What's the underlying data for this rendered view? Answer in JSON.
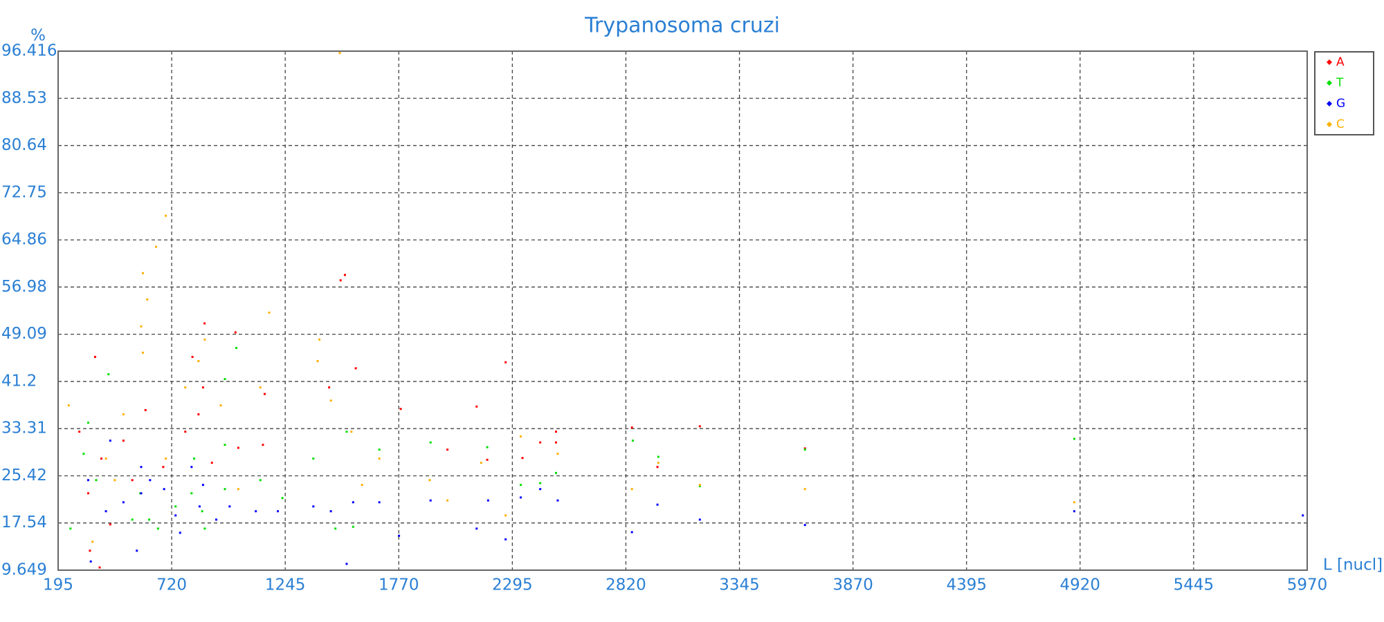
{
  "chart_data": {
    "type": "scatter",
    "title": "Trypanosoma cruzi",
    "y_label": "%",
    "x_label": "L [nucl]",
    "xlim": [
      195,
      5970
    ],
    "xticks": [
      195,
      720,
      1245,
      1770,
      2295,
      2820,
      3345,
      3870,
      4395,
      4920,
      5445,
      5970
    ],
    "ylim": [
      9.649,
      96.416
    ],
    "yticks": [
      9.649,
      17.54,
      25.42,
      33.31,
      41.2,
      49.09,
      56.98,
      64.86,
      72.75,
      80.64,
      88.53,
      96.416
    ],
    "grid": true,
    "series": [
      {
        "name": "A",
        "color": "#ff0000",
        "x": [
          366,
          872,
          1015,
          1501,
          1521,
          1571,
          1448,
          2130,
          2264,
          2848,
          3162,
          3648,
          2497,
          2424,
          2342,
          2179,
          1995,
          1779,
          1142,
          1028,
          844,
          865,
          816,
          599,
          497,
          395,
          334,
          293,
          387,
          2966,
          1150,
          783,
          681,
          906,
          538,
          436,
          342,
          2497
        ],
        "values": [
          45.3,
          50.9,
          49.4,
          58.1,
          59.0,
          43.4,
          40.2,
          37.0,
          44.4,
          33.5,
          33.7,
          30.0,
          31.0,
          31.0,
          28.4,
          28.1,
          29.8,
          36.6,
          30.6,
          30.1,
          35.7,
          40.2,
          45.3,
          36.4,
          31.3,
          28.3,
          22.5,
          32.8,
          10.1,
          26.9,
          39.1,
          32.8,
          26.9,
          27.6,
          24.7,
          17.3,
          12.9,
          32.8
        ]
      },
      {
        "name": "T",
        "color": "#00e000",
        "x": [
          428,
          1019,
          966,
          1529,
          1680,
          1917,
          2179,
          2334,
          2424,
          2497,
          2852,
          2970,
          3162,
          3648,
          4893,
          334,
          313,
          371,
          575,
          616,
          657,
          738,
          861,
          873,
          812,
          966,
          1130,
          1375,
          1559,
          1477,
          252,
          538,
          824,
          1232,
          966
        ],
        "values": [
          42.4,
          46.8,
          41.6,
          32.8,
          29.8,
          31.0,
          30.2,
          23.9,
          24.2,
          25.9,
          31.3,
          28.6,
          23.7,
          29.8,
          31.6,
          34.3,
          29.1,
          24.7,
          22.5,
          18.1,
          16.6,
          20.3,
          19.5,
          16.6,
          22.5,
          23.2,
          24.7,
          28.3,
          16.9,
          16.6,
          16.6,
          18.1,
          28.3,
          21.7,
          30.6
        ]
      },
      {
        "name": "G",
        "color": "#0000ff",
        "x": [
          346,
          436,
          579,
          620,
          579,
          685,
          738,
          812,
          849,
          865,
          988,
          926,
          497,
          416,
          334,
          559,
          759,
          1109,
          1211,
          1375,
          1456,
          1529,
          1559,
          1680,
          1771,
          1917,
          2130,
          2183,
          2264,
          2334,
          2424,
          2505,
          2848,
          2966,
          3162,
          3648,
          4893,
          5950
        ],
        "values": [
          11.1,
          31.3,
          26.9,
          24.7,
          22.5,
          23.2,
          18.8,
          26.9,
          20.3,
          23.9,
          20.3,
          18.1,
          21.0,
          19.5,
          24.7,
          12.9,
          15.9,
          19.5,
          19.5,
          20.3,
          19.5,
          10.7,
          21.0,
          21.0,
          15.4,
          21.3,
          16.6,
          21.3,
          14.8,
          21.8,
          23.2,
          21.3,
          16.0,
          20.6,
          18.1,
          17.2,
          19.5,
          18.8
        ]
      },
      {
        "name": "C",
        "color": "#ffb000",
        "x": [
          693,
          648,
          587,
          607,
          579,
          587,
          244,
          1171,
          1395,
          1403,
          1497,
          1456,
          1551,
          1600,
          1680,
          1913,
          1995,
          2151,
          2264,
          2334,
          2505,
          2848,
          2970,
          3162,
          3648,
          4893,
          457,
          416,
          783,
          844,
          873,
          1028,
          1130,
          947,
          354,
          693,
          497
        ],
        "values": [
          68.9,
          63.7,
          59.3,
          54.9,
          50.4,
          46.0,
          37.2,
          52.7,
          44.6,
          48.2,
          96.1,
          38.0,
          32.8,
          23.9,
          28.3,
          24.7,
          21.3,
          27.6,
          18.8,
          32.0,
          29.1,
          23.2,
          27.6,
          23.9,
          23.2,
          21.0,
          24.7,
          28.3,
          40.2,
          44.6,
          48.2,
          23.2,
          40.2,
          37.2,
          14.4,
          28.3,
          35.7
        ]
      }
    ]
  }
}
